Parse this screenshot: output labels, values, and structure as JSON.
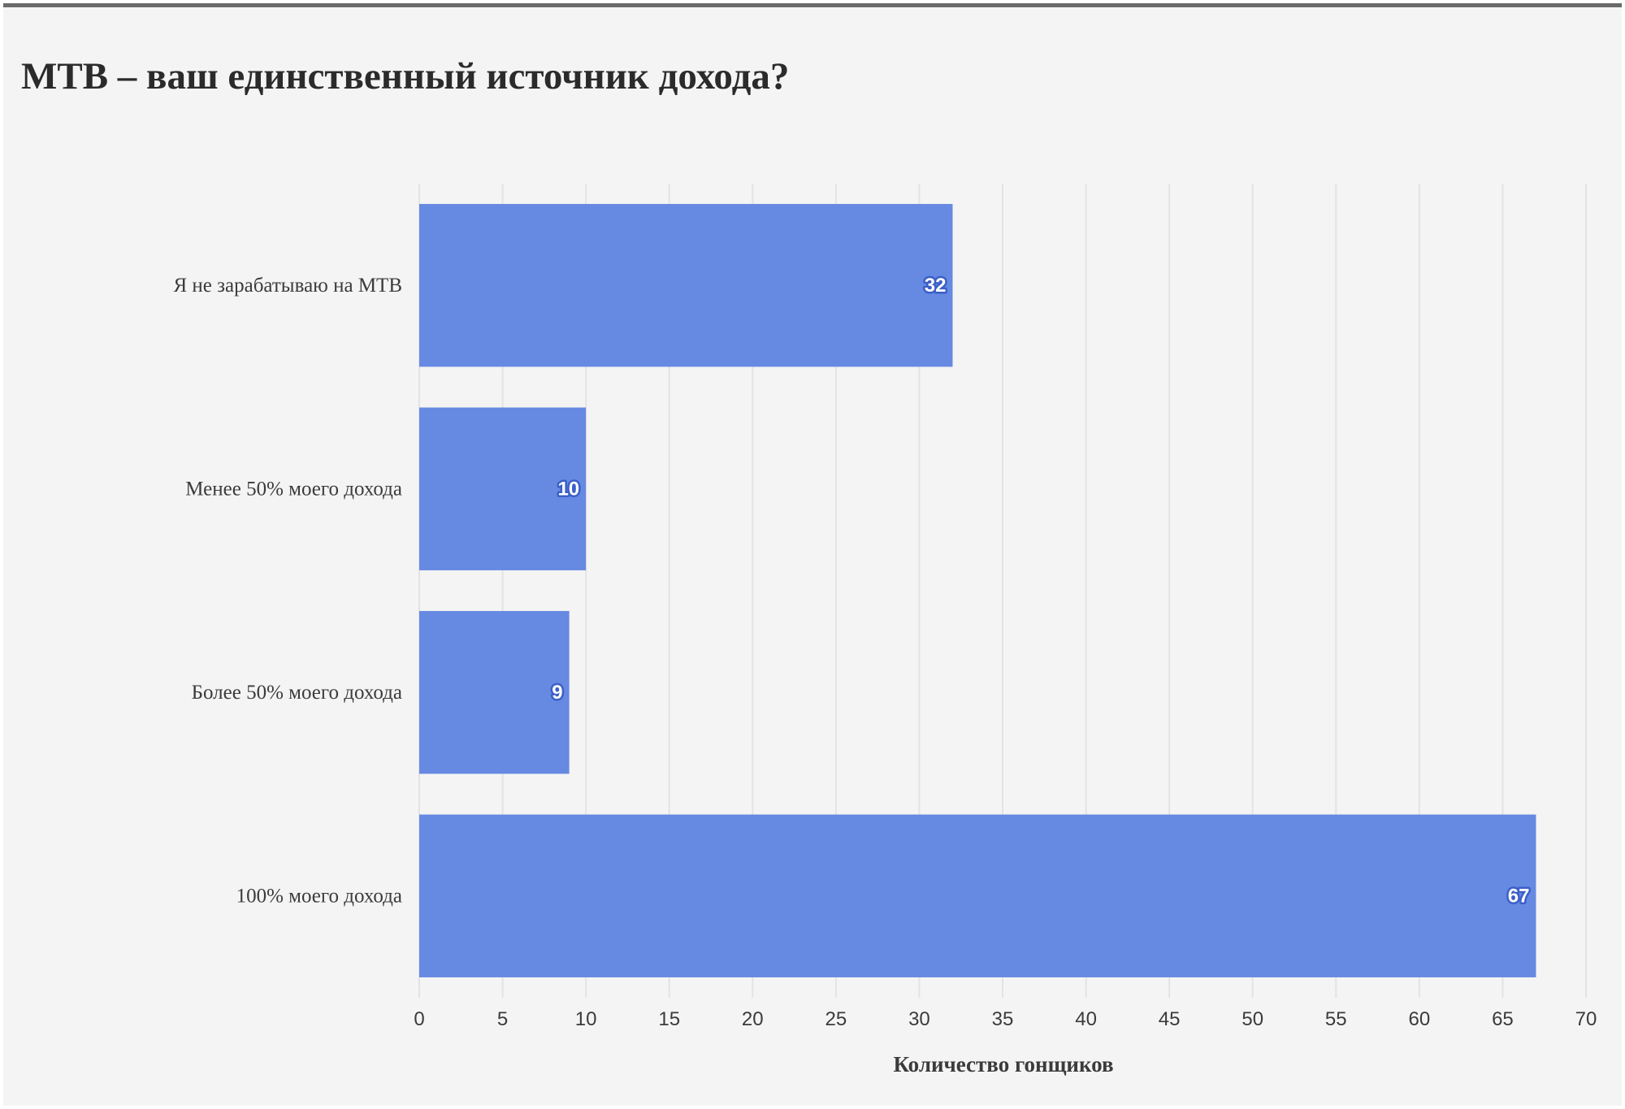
{
  "chart_data": {
    "type": "bar",
    "orientation": "horizontal",
    "title": "MTB – ваш единственный источник дохода?",
    "xlabel": "Количество гонщиков",
    "ylabel": "",
    "categories": [
      "Я не зарабатываю на MTB",
      "Менее 50% моего дохода",
      "Более 50% моего дохода",
      "100% моего дохода"
    ],
    "values": [
      32,
      10,
      9,
      67
    ],
    "xlim": [
      0,
      70
    ],
    "xticks": [
      0,
      5,
      10,
      15,
      20,
      25,
      30,
      35,
      40,
      45,
      50,
      55,
      60,
      65,
      70
    ],
    "grid": true,
    "data_labels": true,
    "bar_color": "#6689e2",
    "label_outline_color": "#3b5fc7"
  }
}
